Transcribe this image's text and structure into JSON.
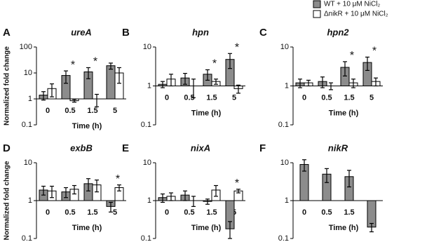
{
  "chart_data": [
    {
      "type": "bar",
      "label": "A",
      "title": "ureA",
      "ylabel": "Normalized fold change",
      "xlabel": "Time (h)",
      "log_scale": true,
      "categories": [
        "0",
        "0.5",
        "1.5",
        "5"
      ],
      "ylim": [
        0.1,
        100
      ],
      "yticks": [
        0.1,
        1,
        10,
        100
      ],
      "series": [
        {
          "name": "WT + 10 μM NiCl₂",
          "color": "#8c8c8c",
          "values": [
            1.4,
            8,
            11,
            19
          ],
          "errors": [
            0.5,
            4,
            5,
            5
          ]
        },
        {
          "name": "ΔnikR + 10 μM NiCl₂",
          "color": "#ffffff",
          "values": [
            2.5,
            0.85,
            1,
            10
          ],
          "errors": [
            1.3,
            0.1,
            0.5,
            6
          ]
        }
      ],
      "annotations": [
        {
          "text": "*",
          "category": "0.5"
        },
        {
          "text": "*",
          "category": "1.5"
        }
      ]
    },
    {
      "type": "bar",
      "label": "B",
      "title": "hpn",
      "xlabel": "Time (h)",
      "log_scale": true,
      "categories": [
        "0",
        "0.5",
        "1.5",
        "5"
      ],
      "ylim": [
        0.1,
        10
      ],
      "yticks": [
        0.1,
        1,
        10
      ],
      "series": [
        {
          "values": [
            1.1,
            1.6,
            2.0,
            4.8
          ],
          "errors": [
            0.2,
            0.5,
            0.6,
            2
          ]
        },
        {
          "values": [
            1.5,
            1.0,
            1.3,
            0.85
          ],
          "errors": [
            0.5,
            0.5,
            0.2,
            0.2
          ]
        }
      ],
      "annotations": [
        {
          "text": "*",
          "category": "1.5"
        },
        {
          "text": "*",
          "category": "5"
        }
      ]
    },
    {
      "type": "bar",
      "label": "C",
      "title": "hpn2",
      "xlabel": "Time (h)",
      "log_scale": true,
      "categories": [
        "0",
        "0.5",
        "1.5",
        "5"
      ],
      "ylim": [
        0.1,
        10
      ],
      "yticks": [
        0.1,
        1,
        10
      ],
      "series": [
        {
          "values": [
            1.2,
            1.3,
            3.0,
            4.0
          ],
          "errors": [
            0.3,
            0.4,
            1.2,
            1.5
          ]
        },
        {
          "values": [
            1.2,
            1.0,
            1.2,
            1.3
          ],
          "errors": [
            0.2,
            0.2,
            0.3,
            0.3
          ]
        }
      ],
      "annotations": [
        {
          "text": "*",
          "category": "1.5"
        },
        {
          "text": "*",
          "category": "5"
        }
      ]
    },
    {
      "type": "bar",
      "label": "D",
      "title": "exbB",
      "ylabel": "Normalized fold change",
      "xlabel": "Time (h)",
      "log_scale": true,
      "categories": [
        "0",
        "0.5",
        "1.5",
        "5"
      ],
      "ylim": [
        0.1,
        10
      ],
      "yticks": [
        0.1,
        1,
        10
      ],
      "series": [
        {
          "values": [
            1.9,
            1.7,
            2.8,
            0.7
          ],
          "errors": [
            0.5,
            0.5,
            1,
            0.2
          ]
        },
        {
          "values": [
            1.8,
            2.0,
            2.6,
            2.2
          ],
          "errors": [
            0.6,
            0.5,
            0.9,
            0.4
          ]
        }
      ],
      "annotations": [
        {
          "text": "*",
          "category": "5"
        }
      ]
    },
    {
      "type": "bar",
      "label": "E",
      "title": "nixA",
      "xlabel": "Time (h)",
      "log_scale": true,
      "categories": [
        "0",
        "0.5",
        "1.5",
        "5"
      ],
      "ylim": [
        0.1,
        10
      ],
      "yticks": [
        0.1,
        1,
        10
      ],
      "series": [
        {
          "values": [
            1.2,
            1.4,
            0.95,
            0.18
          ],
          "errors": [
            0.3,
            0.4,
            0.15,
            0.1
          ]
        },
        {
          "values": [
            1.3,
            1.0,
            1.9,
            1.8
          ],
          "errors": [
            0.3,
            0.3,
            0.6,
            0.2
          ]
        }
      ],
      "annotations": [
        {
          "text": "*",
          "category": "5"
        }
      ]
    },
    {
      "type": "bar",
      "label": "F",
      "title": "nikR",
      "xlabel": "Time (h)",
      "log_scale": true,
      "categories": [
        "0",
        "0.5",
        "1.5",
        "5"
      ],
      "ylim": [
        0.1,
        10
      ],
      "yticks": [
        0.1,
        1,
        10
      ],
      "series": [
        {
          "values": [
            9,
            5,
            4.3,
            0.2
          ],
          "errors": [
            3,
            2,
            2,
            0.05
          ]
        }
      ]
    }
  ]
}
